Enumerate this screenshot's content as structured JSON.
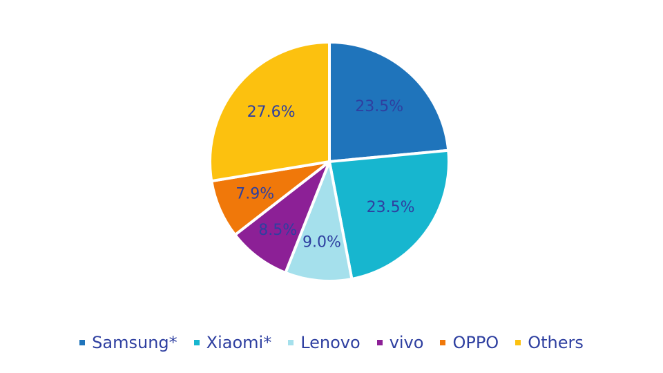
{
  "chart_data": {
    "type": "pie",
    "categories": [
      "Samsung*",
      "Xiaomi*",
      "Lenovo",
      "vivo",
      "OPPO",
      "Others"
    ],
    "values": [
      23.5,
      23.5,
      9.0,
      8.5,
      7.9,
      27.6
    ],
    "data_labels": [
      "23.5%",
      "23.5%",
      "9.0%",
      "8.5%",
      "7.9%",
      "27.6%"
    ],
    "colors": [
      "#1f74bb",
      "#17b6cf",
      "#a5e0ec",
      "#8c2096",
      "#f0780a",
      "#fcc10f"
    ],
    "label_color": "#2e3fa0",
    "start_angle": "12 o'clock",
    "direction": "clockwise",
    "title": "",
    "legend_position": "bottom"
  }
}
